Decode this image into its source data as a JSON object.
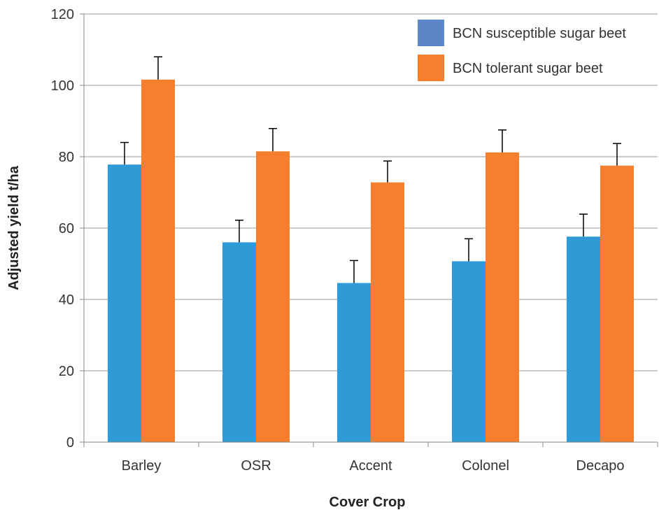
{
  "chart_data": {
    "type": "bar",
    "title": "",
    "xlabel": "Cover Crop",
    "ylabel": "Adjusted yield t/ha",
    "categories": [
      "Barley",
      "OSR",
      "Accent",
      "Colonel",
      "Decapo"
    ],
    "ylim": [
      0,
      120
    ],
    "yticks": [
      "0",
      "20",
      "40",
      "60",
      "80",
      "100",
      "120"
    ],
    "grid": true,
    "legend_position": "top-right",
    "series": [
      {
        "name": "BCN susceptible sugar beet",
        "color": "#2E9BD6",
        "legend_color": "#5B87C8",
        "values": [
          77.8,
          56.0,
          44.6,
          50.7,
          57.6
        ],
        "error": [
          6.2,
          6.2,
          6.3,
          6.3,
          6.3
        ]
      },
      {
        "name": "BCN tolerant sugar beet",
        "color": "#F57F2C",
        "legend_color": "#F57F2C",
        "values": [
          101.6,
          81.5,
          72.8,
          81.2,
          77.5
        ],
        "error": [
          6.4,
          6.4,
          6.0,
          6.3,
          6.2
        ]
      }
    ]
  }
}
